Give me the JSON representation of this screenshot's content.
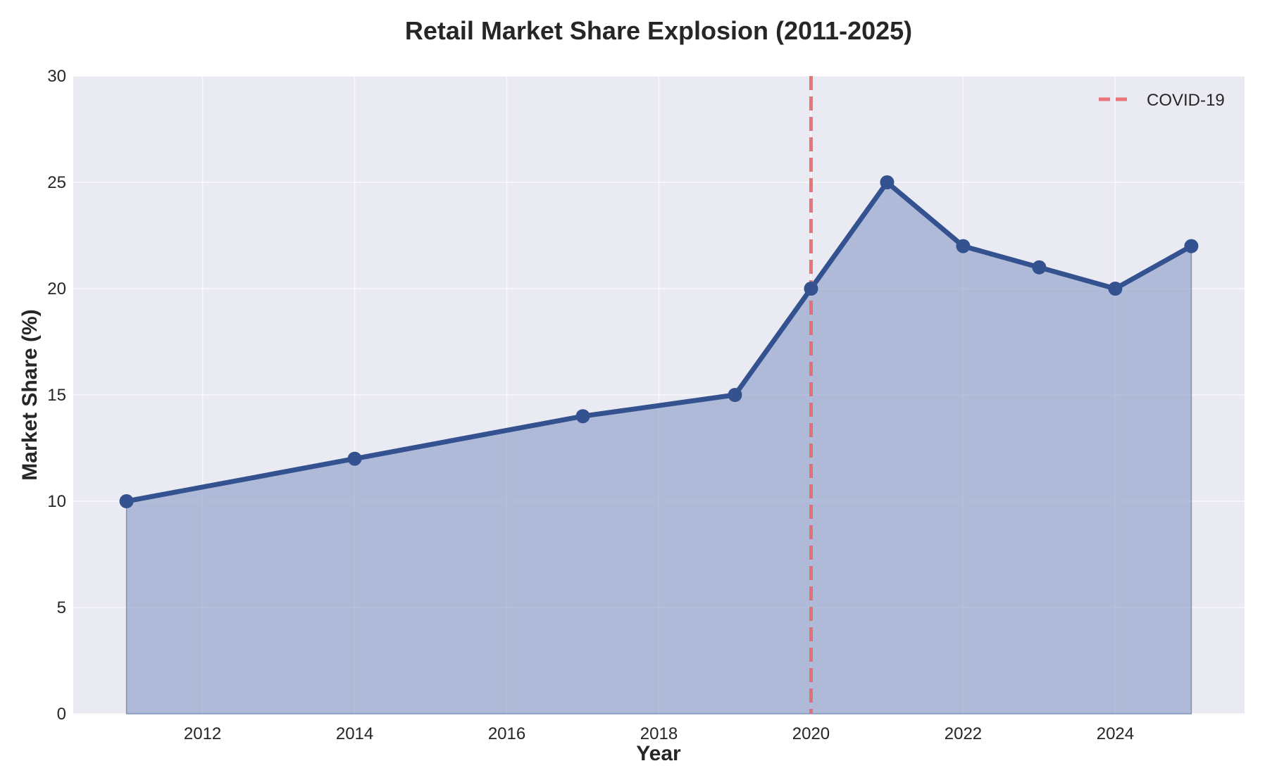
{
  "chart_data": {
    "type": "area",
    "title": "Retail Market Share Explosion (2011-2025)",
    "xlabel": "Year",
    "ylabel": "Market Share (%)",
    "xlim": [
      2010.3,
      2025.7
    ],
    "ylim": [
      0,
      30
    ],
    "xticks": [
      2012,
      2014,
      2016,
      2018,
      2020,
      2022,
      2024
    ],
    "yticks": [
      0,
      5,
      10,
      15,
      20,
      25,
      30
    ],
    "grid": true,
    "legend_position": "top-right",
    "series": [
      {
        "x": [
          2011,
          2014,
          2017,
          2019,
          2020,
          2021,
          2022,
          2023,
          2024,
          2025
        ],
        "values": [
          10,
          12,
          14,
          15,
          20,
          25,
          22,
          21,
          20,
          22
        ],
        "color": "#34528f",
        "fill_color": "#8f9fc9"
      }
    ],
    "annotations": [
      {
        "type": "vline",
        "x": 2020,
        "label": "COVID-19",
        "color": "#e8676b",
        "style": "dashed"
      }
    ],
    "background_color": "#eaeaf2"
  }
}
